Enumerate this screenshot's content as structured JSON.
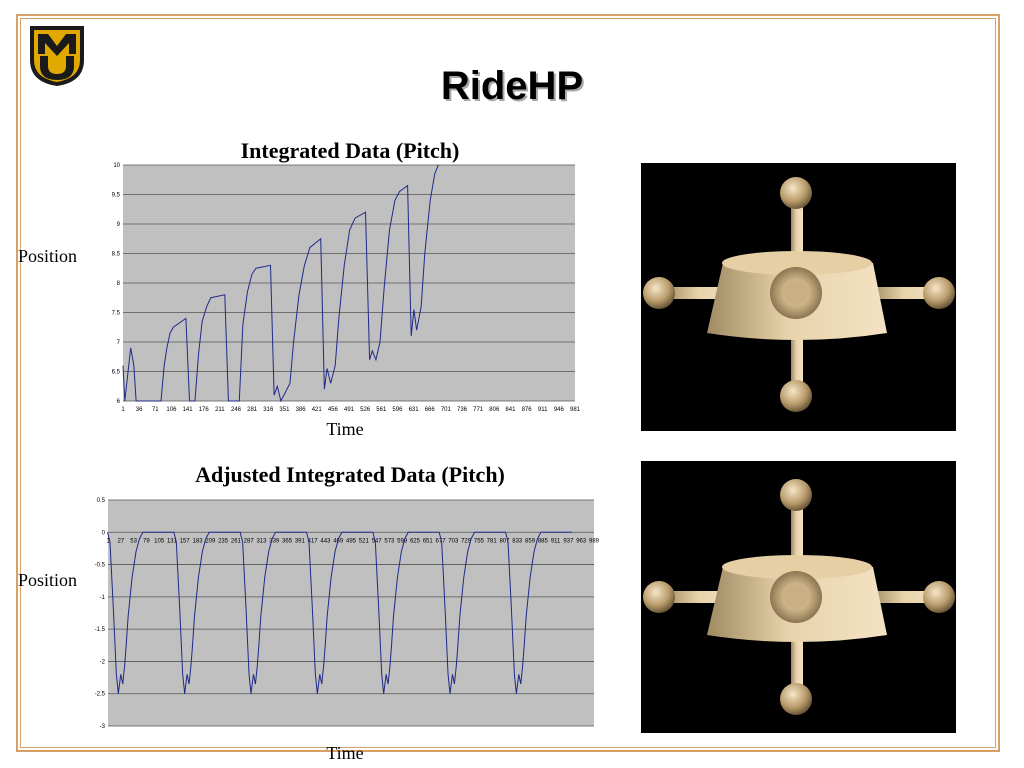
{
  "slide": {
    "title": "RideHP",
    "logo_letters": "MU"
  },
  "colors": {
    "border": "#d9a066",
    "plot_bg": "#c0c0c0",
    "series": "#1f2a8a",
    "logo_gold": "#e0a800",
    "logo_dark": "#1a1a1a",
    "model_tan": "#e6cfa5"
  },
  "images": [
    {
      "name": "rider-model-render-top"
    },
    {
      "name": "rider-model-render-bottom"
    }
  ],
  "chart_data": [
    {
      "type": "line",
      "title": "Integrated Data (Pitch)",
      "xlabel": "Time",
      "ylabel": "Position",
      "ylim": [
        6,
        10
      ],
      "xlim": [
        1,
        1000
      ],
      "y_ticks": [
        "6",
        "6.5",
        "7",
        "7.5",
        "8",
        "8.5",
        "9",
        "9.5",
        "10"
      ],
      "x_ticks": [
        "1",
        "36",
        "71",
        "106",
        "141",
        "176",
        "211",
        "246",
        "281",
        "316",
        "351",
        "386",
        "421",
        "456",
        "491",
        "526",
        "561",
        "596",
        "631",
        "666",
        "701",
        "736",
        "771",
        "806",
        "841",
        "876",
        "911",
        "946",
        "981"
      ],
      "grid": true,
      "legend": "none",
      "series": [
        {
          "points": [
            [
              1,
              6.6
            ],
            [
              5,
              6.0
            ],
            [
              18,
              6.9
            ],
            [
              25,
              6.6
            ],
            [
              30,
              6.0
            ],
            [
              85,
              6.0
            ],
            [
              92,
              6.6
            ],
            [
              98,
              6.9
            ],
            [
              105,
              7.15
            ],
            [
              112,
              7.25
            ],
            [
              140,
              7.4
            ],
            [
              148,
              6.0
            ],
            [
              160,
              6.0
            ],
            [
              168,
              6.8
            ],
            [
              176,
              7.35
            ],
            [
              186,
              7.6
            ],
            [
              195,
              7.75
            ],
            [
              226,
              7.8
            ],
            [
              234,
              6.0
            ],
            [
              258,
              6.0
            ],
            [
              266,
              7.3
            ],
            [
              276,
              7.85
            ],
            [
              286,
              8.15
            ],
            [
              295,
              8.25
            ],
            [
              327,
              8.3
            ],
            [
              335,
              6.1
            ],
            [
              342,
              6.25
            ],
            [
              350,
              6.0
            ],
            [
              370,
              6.3
            ],
            [
              378,
              7.0
            ],
            [
              390,
              7.8
            ],
            [
              402,
              8.3
            ],
            [
              414,
              8.6
            ],
            [
              438,
              8.75
            ],
            [
              446,
              6.2
            ],
            [
              452,
              6.55
            ],
            [
              460,
              6.3
            ],
            [
              470,
              6.6
            ],
            [
              478,
              7.4
            ],
            [
              490,
              8.3
            ],
            [
              502,
              8.9
            ],
            [
              514,
              9.1
            ],
            [
              537,
              9.2
            ],
            [
              546,
              6.7
            ],
            [
              552,
              6.85
            ],
            [
              560,
              6.7
            ],
            [
              569,
              7.0
            ],
            [
              578,
              7.9
            ],
            [
              590,
              8.9
            ],
            [
              602,
              9.4
            ],
            [
              612,
              9.55
            ],
            [
              630,
              9.65
            ],
            [
              638,
              7.1
            ],
            [
              644,
              7.55
            ],
            [
              650,
              7.2
            ],
            [
              660,
              7.6
            ],
            [
              668,
              8.5
            ],
            [
              680,
              9.4
            ],
            [
              690,
              9.85
            ],
            [
              698,
              10.0
            ]
          ]
        }
      ]
    },
    {
      "type": "line",
      "title": "Adjusted Integrated Data (Pitch)",
      "xlabel": "Time",
      "ylabel": "Position",
      "ylim": [
        -3,
        0.5
      ],
      "xlim": [
        1,
        990
      ],
      "y_ticks": [
        "0.5",
        "0",
        "-0.5",
        "-1",
        "-1.5",
        "-2",
        "-2.5",
        "-3"
      ],
      "x_ticks": [
        "1",
        "27",
        "53",
        "79",
        "105",
        "131",
        "157",
        "183",
        "209",
        "235",
        "261",
        "287",
        "313",
        "339",
        "365",
        "391",
        "417",
        "443",
        "469",
        "495",
        "521",
        "547",
        "573",
        "599",
        "625",
        "651",
        "677",
        "703",
        "729",
        "755",
        "781",
        "807",
        "833",
        "859",
        "885",
        "911",
        "937",
        "963",
        "989"
      ],
      "grid": true,
      "legend": "none",
      "series": [
        {
          "period": 135,
          "cycle_shape": [
            [
              0,
              0.0
            ],
            [
              5,
              -0.15
            ],
            [
              12,
              -1.2
            ],
            [
              18,
              -2.2
            ],
            [
              22,
              -2.5
            ],
            [
              27,
              -2.2
            ],
            [
              31,
              -2.35
            ],
            [
              35,
              -2.05
            ],
            [
              38,
              -1.75
            ],
            [
              42,
              -1.3
            ],
            [
              50,
              -0.7
            ],
            [
              58,
              -0.3
            ],
            [
              65,
              -0.1
            ],
            [
              72,
              0.0
            ],
            [
              135,
              0.0
            ]
          ],
          "cycle_count": 7,
          "x_offset": 0
        }
      ]
    }
  ]
}
